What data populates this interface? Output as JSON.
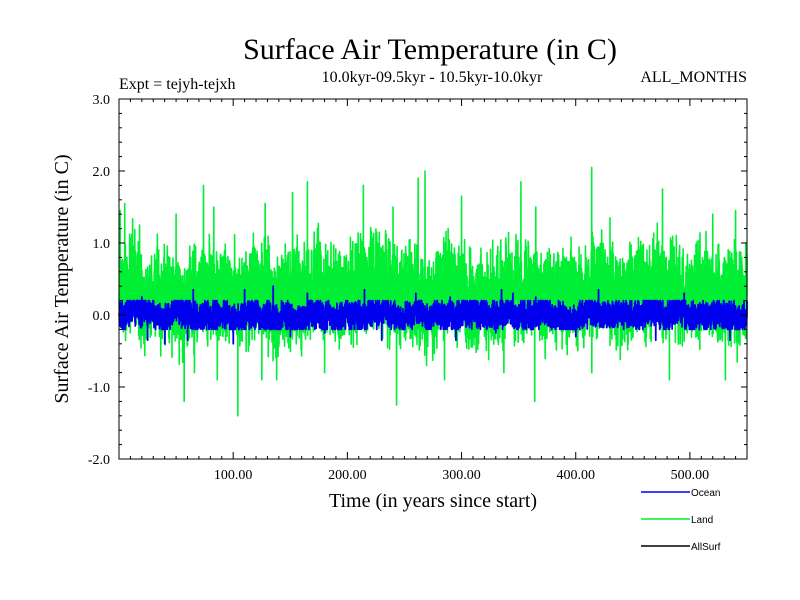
{
  "chart_data": {
    "type": "line",
    "title": "Surface Air Temperature (in C)",
    "experiment_label": "Expt = tejyh-tejxh",
    "period_label": "10.0kyr-09.5kyr - 10.5kyr-10.0kyr",
    "months_label": "ALL_MONTHS",
    "xlabel": "Time (in years since start)",
    "ylabel": "Surface Air Temperature (in C)",
    "xlim": [
      0,
      550
    ],
    "ylim": [
      -2.0,
      3.0
    ],
    "x_ticks": [
      {
        "value": 100,
        "label": "100.00"
      },
      {
        "value": 200,
        "label": "200.00"
      },
      {
        "value": 300,
        "label": "300.00"
      },
      {
        "value": 400,
        "label": "400.00"
      },
      {
        "value": 500,
        "label": "500.00"
      }
    ],
    "y_ticks": [
      {
        "value": -2.0,
        "label": "-2.0"
      },
      {
        "value": -1.0,
        "label": "-1.0"
      },
      {
        "value": 0.0,
        "label": "0.0"
      },
      {
        "value": 1.0,
        "label": "1.0"
      },
      {
        "value": 2.0,
        "label": "2.0"
      },
      {
        "value": 3.0,
        "label": "3.0"
      }
    ],
    "series": [
      {
        "name": "Land",
        "color": "#00ee33",
        "style": "monthly noise",
        "mean": 0.3,
        "approx_min": -1.4,
        "approx_max": 2.05,
        "peaks": [
          {
            "x": 1,
            "y": 1.45
          },
          {
            "x": 5,
            "y": 1.55
          },
          {
            "x": 18,
            "y": 1.25
          },
          {
            "x": 50,
            "y": 1.4
          },
          {
            "x": 74,
            "y": 1.8
          },
          {
            "x": 83,
            "y": 1.5
          },
          {
            "x": 128,
            "y": 1.55
          },
          {
            "x": 152,
            "y": 1.7
          },
          {
            "x": 165,
            "y": 1.85
          },
          {
            "x": 214,
            "y": 1.8
          },
          {
            "x": 240,
            "y": 1.5
          },
          {
            "x": 262,
            "y": 1.9
          },
          {
            "x": 268,
            "y": 2.0
          },
          {
            "x": 300,
            "y": 1.65
          },
          {
            "x": 352,
            "y": 1.85
          },
          {
            "x": 365,
            "y": 1.5
          },
          {
            "x": 414,
            "y": 2.05
          },
          {
            "x": 430,
            "y": 1.35
          },
          {
            "x": 476,
            "y": 1.75
          },
          {
            "x": 520,
            "y": 1.4
          },
          {
            "x": 540,
            "y": 1.45
          }
        ],
        "troughs": [
          {
            "x": 57,
            "y": -1.2
          },
          {
            "x": 66,
            "y": -0.8
          },
          {
            "x": 86,
            "y": -0.9
          },
          {
            "x": 104,
            "y": -1.4
          },
          {
            "x": 125,
            "y": -0.9
          },
          {
            "x": 138,
            "y": -0.9
          },
          {
            "x": 180,
            "y": -0.8
          },
          {
            "x": 243,
            "y": -1.25
          },
          {
            "x": 285,
            "y": -0.9
          },
          {
            "x": 337,
            "y": -0.8
          },
          {
            "x": 364,
            "y": -1.2
          },
          {
            "x": 414,
            "y": -0.8
          },
          {
            "x": 482,
            "y": -0.9
          },
          {
            "x": 531,
            "y": -0.9
          }
        ]
      },
      {
        "name": "Ocean",
        "color": "#0000ee",
        "style": "monthly noise",
        "mean": 0.0,
        "approx_min": -0.45,
        "approx_max": 0.45,
        "peaks": [
          {
            "x": 20,
            "y": 0.25
          },
          {
            "x": 65,
            "y": 0.35
          },
          {
            "x": 85,
            "y": 0.15
          },
          {
            "x": 110,
            "y": 0.35
          },
          {
            "x": 135,
            "y": 0.4
          },
          {
            "x": 165,
            "y": 0.3
          },
          {
            "x": 215,
            "y": 0.35
          },
          {
            "x": 260,
            "y": 0.3
          },
          {
            "x": 290,
            "y": 0.25
          },
          {
            "x": 335,
            "y": 0.35
          },
          {
            "x": 345,
            "y": 0.3
          },
          {
            "x": 365,
            "y": 0.25
          },
          {
            "x": 420,
            "y": 0.35
          },
          {
            "x": 470,
            "y": 0.2
          },
          {
            "x": 495,
            "y": 0.3
          }
        ],
        "troughs": [
          {
            "x": 25,
            "y": -0.35
          },
          {
            "x": 40,
            "y": -0.4
          },
          {
            "x": 60,
            "y": -0.35
          },
          {
            "x": 100,
            "y": -0.4
          },
          {
            "x": 150,
            "y": -0.3
          },
          {
            "x": 180,
            "y": -0.25
          },
          {
            "x": 230,
            "y": -0.35
          },
          {
            "x": 295,
            "y": -0.35
          },
          {
            "x": 330,
            "y": -0.25
          },
          {
            "x": 400,
            "y": -0.3
          },
          {
            "x": 470,
            "y": -0.35
          },
          {
            "x": 535,
            "y": -0.35
          }
        ]
      },
      {
        "name": "AllSurf",
        "color": "#000000",
        "style": "not visible (hidden beneath other series)"
      }
    ],
    "legend": {
      "position": "bottom-right",
      "entries": [
        {
          "name": "Ocean",
          "color": "#0000ee"
        },
        {
          "name": "Land",
          "color": "#00ee33"
        },
        {
          "name": "AllSurf",
          "color": "#000000"
        }
      ]
    }
  }
}
